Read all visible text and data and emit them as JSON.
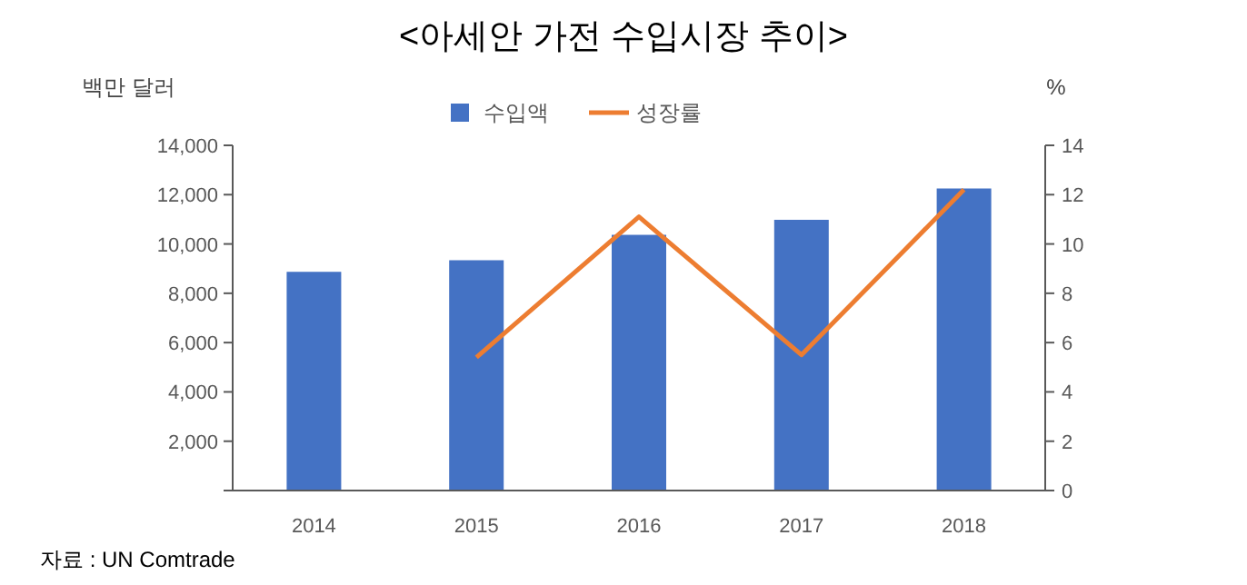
{
  "chart_data": {
    "type": "bar",
    "title": "<아세안 가전 수입시장 추이>",
    "ylabel": "백만 달러",
    "y2label": "%",
    "categories": [
      "2014",
      "2015",
      "2016",
      "2017",
      "2018"
    ],
    "series": [
      {
        "name": "수입액",
        "color": "#4472c4",
        "values": [
          8870,
          9340,
          10370,
          10980,
          12250
        ]
      },
      {
        "name": "성장률",
        "type": "line",
        "axis": "y2",
        "color": "#ed7d31",
        "values": [
          null,
          5.4,
          11.1,
          5.5,
          12.2
        ]
      }
    ],
    "ylim": [
      0,
      14000
    ],
    "yticks": [
      {
        "value": 0,
        "label": null
      },
      {
        "value": 2000,
        "label": "2,000"
      },
      {
        "value": 4000,
        "label": "4,000"
      },
      {
        "value": 6000,
        "label": "6,000"
      },
      {
        "value": 8000,
        "label": "8,000"
      },
      {
        "value": 10000,
        "label": "10,000"
      },
      {
        "value": 12000,
        "label": "12,000"
      },
      {
        "value": 14000,
        "label": "14,000"
      }
    ],
    "y2lim": [
      0,
      14
    ],
    "y2ticks": [
      0,
      2,
      4,
      6,
      8,
      10,
      12,
      14
    ],
    "legend": "top",
    "grid": false,
    "annotations": [
      "자료 : UN Comtrade"
    ]
  }
}
